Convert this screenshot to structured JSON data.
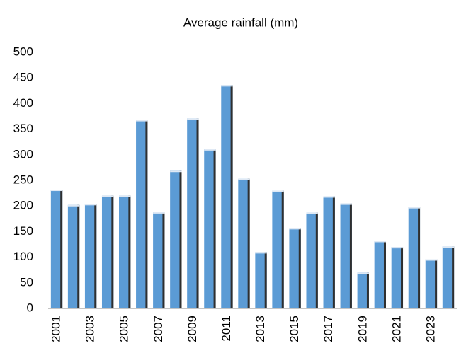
{
  "chart_data": {
    "type": "bar",
    "title": "Average rainfall (mm)",
    "categories": [
      "2001",
      null,
      "2003",
      null,
      "2005",
      null,
      "2007",
      null,
      "2009",
      null,
      "2011",
      null,
      "2013",
      null,
      "2015",
      null,
      "2017",
      null,
      "2019",
      null,
      "2021",
      null,
      "2023",
      null
    ],
    "values": [
      232,
      202,
      204,
      220,
      220,
      368,
      188,
      269,
      371,
      311,
      436,
      253,
      110,
      230,
      157,
      187,
      219,
      205,
      70,
      132,
      120,
      198,
      96,
      121
    ],
    "color": "#5b9bd5",
    "ylim": [
      0,
      500
    ],
    "yticks": [
      0,
      50,
      100,
      150,
      200,
      250,
      300,
      350,
      400,
      450,
      500
    ],
    "grid": false
  }
}
